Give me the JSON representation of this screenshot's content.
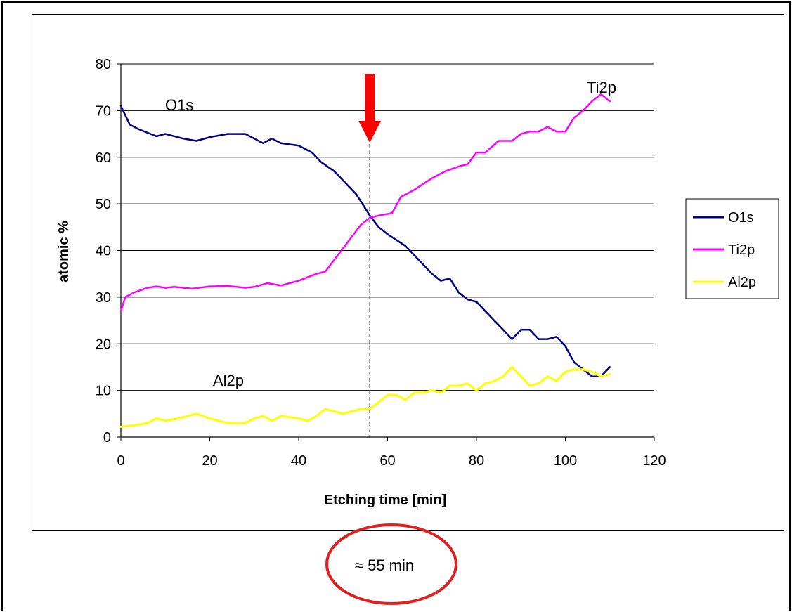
{
  "chart_data": {
    "type": "line",
    "xlabel": "Etching time [min]",
    "ylabel": "atomic %",
    "xlim": [
      0,
      120
    ],
    "ylim": [
      0,
      80
    ],
    "x_ticks": [
      "0",
      "20",
      "40",
      "60",
      "80",
      "100",
      "120"
    ],
    "y_ticks": [
      "0",
      "10",
      "20",
      "30",
      "40",
      "50",
      "60",
      "70",
      "80"
    ],
    "grid": "horizontal",
    "legend": "right",
    "series": [
      {
        "name": "O1s",
        "color": "#000080",
        "x": [
          0,
          2,
          4,
          8,
          10,
          14,
          17,
          20,
          24,
          28,
          30,
          32,
          34,
          36,
          40,
          43,
          45,
          48,
          50,
          53,
          56,
          58,
          60,
          64,
          68,
          70,
          72,
          74,
          76,
          78,
          80,
          82,
          84,
          86,
          88,
          90,
          92,
          94,
          96,
          98,
          100,
          102,
          104,
          106,
          108,
          110
        ],
        "values": [
          71,
          67,
          66,
          64.5,
          65,
          64,
          63.5,
          64.3,
          65,
          65,
          64,
          63,
          64,
          63,
          62.5,
          61,
          59,
          57,
          55,
          52,
          47.5,
          45,
          43.5,
          41,
          37,
          35,
          33.5,
          34,
          31,
          29.5,
          29,
          27,
          25,
          23,
          21,
          23,
          23,
          21,
          21,
          21.5,
          19.5,
          16,
          14.5,
          13,
          13,
          15
        ]
      },
      {
        "name": "Ti2p",
        "color": "#ff00ff",
        "x": [
          0,
          1,
          3,
          6,
          8,
          10,
          12,
          16,
          20,
          24,
          28,
          30,
          33,
          36,
          40,
          44,
          46,
          48,
          50,
          52,
          54,
          56,
          58,
          61,
          63,
          66,
          70,
          73,
          76,
          78,
          80,
          82,
          85,
          88,
          90,
          92,
          94,
          96,
          98,
          100,
          102,
          104,
          106,
          108,
          110
        ],
        "values": [
          27,
          30,
          31,
          32,
          32.3,
          32,
          32.2,
          31.8,
          32.3,
          32.4,
          32,
          32.2,
          33,
          32.5,
          33.5,
          35,
          35.5,
          38,
          40.5,
          43,
          45.5,
          47,
          47.5,
          48,
          51.5,
          53,
          55.5,
          57,
          58,
          58.5,
          61,
          61,
          63.5,
          63.5,
          65,
          65.5,
          65.5,
          66.5,
          65.5,
          65.5,
          68.5,
          70,
          72,
          73.5,
          72
        ]
      },
      {
        "name": "Al2p",
        "color": "#ffff00",
        "x": [
          0,
          3,
          6,
          8,
          10,
          13,
          17,
          20,
          24,
          28,
          30,
          32,
          34,
          36,
          40,
          42,
          44,
          46,
          48,
          50,
          52,
          54,
          56,
          58,
          60,
          62,
          64,
          66,
          68,
          70,
          72,
          74,
          76,
          78,
          80,
          82,
          84,
          86,
          88,
          90,
          92,
          94,
          96,
          98,
          100,
          102,
          104,
          106,
          108,
          110
        ],
        "values": [
          2.2,
          2.5,
          3,
          4,
          3.5,
          4,
          5,
          4,
          3,
          3,
          4,
          4.5,
          3.5,
          4.5,
          4,
          3.5,
          4.5,
          6,
          5.5,
          5,
          5.5,
          6,
          6,
          7.5,
          9,
          9,
          8,
          9.5,
          9.5,
          10,
          9.5,
          11,
          11,
          11.5,
          10,
          11.5,
          12,
          13,
          15,
          13,
          11,
          11.5,
          13,
          12,
          14,
          14.5,
          14.5,
          14,
          13,
          13.5
        ]
      }
    ],
    "annotations": {
      "marker_x": 56,
      "label_o1s": "O1s",
      "label_ti2p": "Ti2p",
      "label_al2p": "Al2p",
      "circled_note": "≈ 55 min",
      "arrow_color": "#ff0000",
      "circle_color": "#e02020"
    }
  }
}
